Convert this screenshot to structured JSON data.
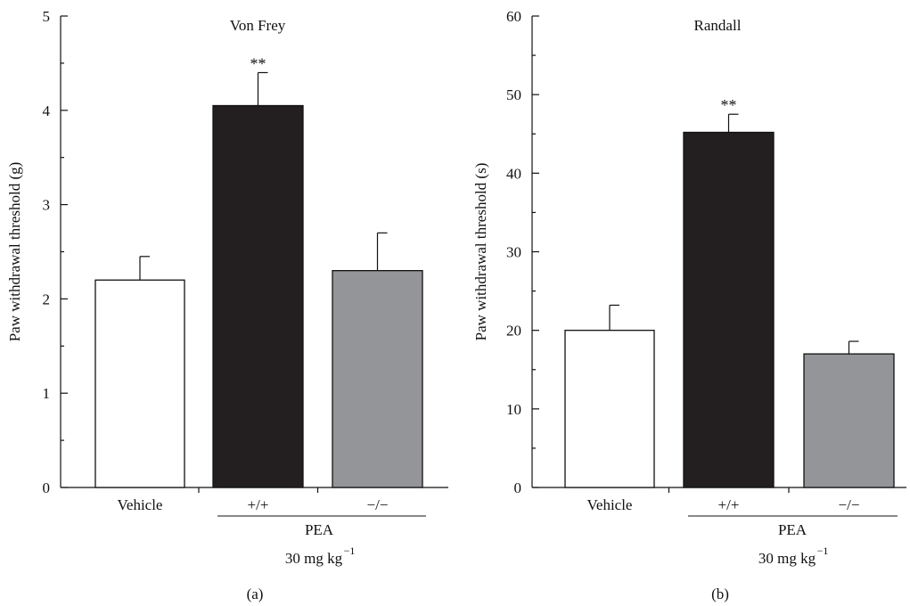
{
  "chart_data": [
    {
      "type": "bar",
      "title": "Von Frey",
      "panel_label": "(a)",
      "ylabel": "Paw withdrawal threshold (g)",
      "xlabel": "",
      "ylim": [
        0,
        5
      ],
      "yticks": [
        0,
        1,
        2,
        3,
        4,
        5
      ],
      "minor_step": 0.5,
      "categories": [
        "Vehicle",
        "+/+",
        "−/−"
      ],
      "values": [
        2.2,
        4.05,
        2.3
      ],
      "errors": [
        0.25,
        0.35,
        0.4
      ],
      "bar_colors": [
        "#ffffff",
        "#231f20",
        "#939598"
      ],
      "significance": [
        "",
        "**",
        ""
      ],
      "group_label": "PEA",
      "dose_label": "30 mg kg",
      "dose_exponent": "−1",
      "grid": false
    },
    {
      "type": "bar",
      "title": "Randall",
      "panel_label": "(b)",
      "ylabel": "Paw withdrawal threshold (s)",
      "xlabel": "",
      "ylim": [
        0,
        60
      ],
      "yticks": [
        0,
        10,
        20,
        30,
        40,
        50,
        60
      ],
      "minor_step": 5,
      "categories": [
        "Vehicle",
        "+/+",
        "−/−"
      ],
      "values": [
        20,
        45.2,
        17
      ],
      "errors": [
        3.2,
        2.3,
        1.6
      ],
      "bar_colors": [
        "#ffffff",
        "#231f20",
        "#939598"
      ],
      "significance": [
        "",
        "**",
        ""
      ],
      "group_label": "PEA",
      "dose_label": "30 mg kg",
      "dose_exponent": "−1",
      "grid": false
    }
  ]
}
